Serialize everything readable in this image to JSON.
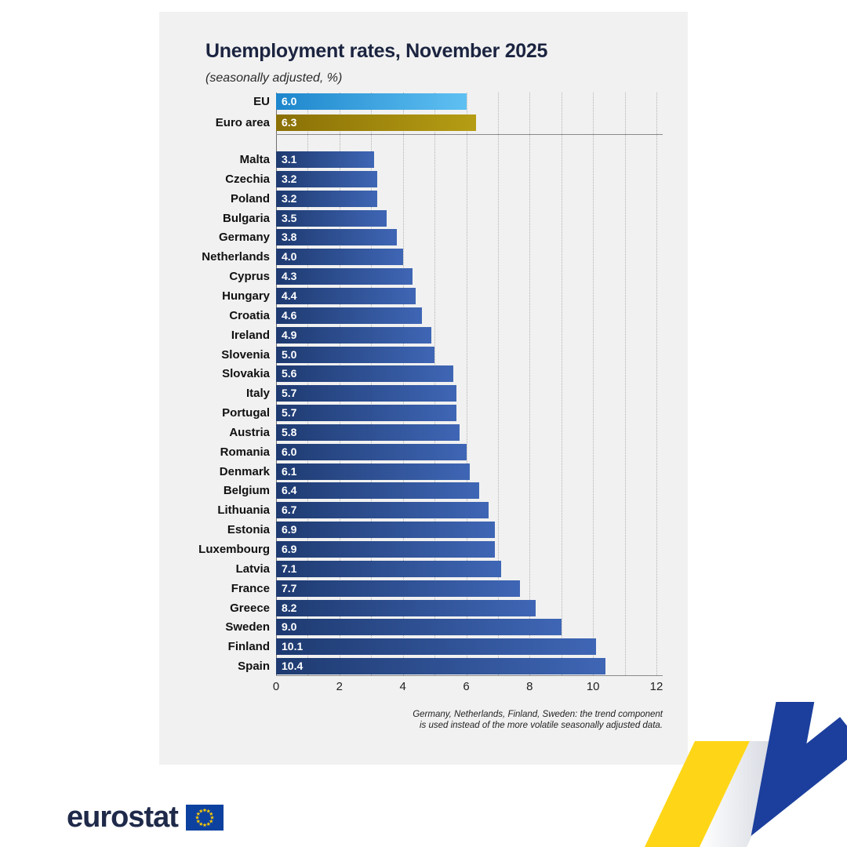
{
  "card": {
    "title": "Unemployment rates, November 2025",
    "subtitle": "(seasonally adjusted, %)",
    "footnote": [
      "Germany, Netherlands, Finland, Sweden: the trend component",
      "is used instead of the more volatile seasonally adjusted data."
    ]
  },
  "chart_data": {
    "type": "bar",
    "orientation": "horizontal",
    "title": "Unemployment rates, November 2025",
    "subtitle": "(seasonally adjusted, %)",
    "xlabel": "",
    "ylabel": "",
    "xlim": [
      0,
      12
    ],
    "xticks": [
      0,
      2,
      4,
      6,
      8,
      10,
      12
    ],
    "grid": "dotted vertical line at every 1 unit",
    "aggregates": [
      {
        "label": "EU",
        "value": 6.0
      },
      {
        "label": "Euro area",
        "value": 6.3
      }
    ],
    "categories": [
      "Malta",
      "Czechia",
      "Poland",
      "Bulgaria",
      "Germany",
      "Netherlands",
      "Cyprus",
      "Hungary",
      "Croatia",
      "Ireland",
      "Slovenia",
      "Slovakia",
      "Italy",
      "Portugal",
      "Austria",
      "Romania",
      "Denmark",
      "Belgium",
      "Lithuania",
      "Estonia",
      "Luxembourg",
      "Latvia",
      "France",
      "Greece",
      "Sweden",
      "Finland",
      "Spain"
    ],
    "values": [
      3.1,
      3.2,
      3.2,
      3.5,
      3.8,
      4.0,
      4.3,
      4.4,
      4.6,
      4.9,
      5.0,
      5.6,
      5.7,
      5.7,
      5.8,
      6.0,
      6.1,
      6.4,
      6.7,
      6.9,
      6.9,
      7.1,
      7.7,
      8.2,
      9.0,
      10.1,
      10.4
    ]
  },
  "colors": {
    "card_bg": "#f1f1f1",
    "country_bar_left": "#1e3a70",
    "country_bar_right": "#3f66b5",
    "eu_bar_left": "#1d86cc",
    "eu_bar_right": "#5fc0f2",
    "euro_bar_left": "#8a7006",
    "euro_bar_right": "#b59d14",
    "ribbon_yellow": "#ffd617",
    "ribbon_blue": "#1c3f9d",
    "eu_flag_blue": "#0d419f",
    "eu_flag_stars": "#ffcc00"
  },
  "branding": {
    "wordmark": "eurostat"
  }
}
